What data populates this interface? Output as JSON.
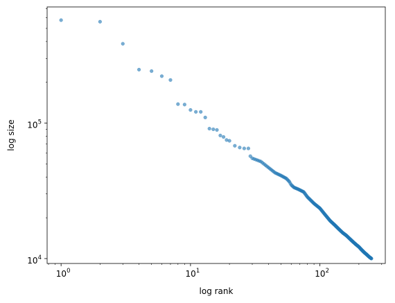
{
  "chart_data": {
    "type": "scatter",
    "title": "",
    "xlabel": "log rank",
    "ylabel": "log size",
    "xscale": "log",
    "yscale": "log",
    "xlim": [
      0.78,
      320
    ],
    "ylim": [
      9200,
      720000
    ],
    "grid": false,
    "legend": "none",
    "marker_color": "#1f77b4",
    "marker_alpha": 0.6,
    "xticks": [
      {
        "value": 1,
        "base": "10",
        "exp": "0"
      },
      {
        "value": 10,
        "base": "10",
        "exp": "1"
      },
      {
        "value": 100,
        "base": "10",
        "exp": "2"
      }
    ],
    "yticks": [
      {
        "value": 10000,
        "base": "10",
        "exp": "4"
      },
      {
        "value": 100000,
        "base": "10",
        "exp": "5"
      }
    ],
    "series": [
      {
        "x": [
          1,
          2,
          3,
          4,
          5,
          6,
          7,
          8,
          9,
          10,
          11,
          12,
          13,
          14,
          15,
          16,
          17,
          18,
          19,
          20,
          22,
          24,
          26,
          28
        ],
        "y": [
          575000,
          560000,
          385000,
          248000,
          242000,
          222000,
          208000,
          138000,
          137000,
          125000,
          121000,
          121000,
          110000,
          91000,
          90000,
          89000,
          81000,
          79000,
          75000,
          74000,
          68000,
          66000,
          65000,
          65000
        ]
      }
    ],
    "trend": {
      "x_range": [
        29,
        250
      ],
      "points": [
        [
          29,
          57000
        ],
        [
          30,
          55000
        ],
        [
          35,
          52000
        ],
        [
          40,
          47000
        ],
        [
          45,
          43000
        ],
        [
          50,
          41000
        ],
        [
          55,
          39000
        ],
        [
          58,
          37000
        ],
        [
          60,
          35000
        ],
        [
          63,
          33500
        ],
        [
          68,
          32500
        ],
        [
          75,
          31000
        ],
        [
          80,
          28500
        ],
        [
          90,
          25500
        ],
        [
          100,
          23500
        ],
        [
          110,
          21000
        ],
        [
          120,
          19000
        ],
        [
          130,
          17700
        ],
        [
          140,
          16500
        ],
        [
          150,
          15500
        ],
        [
          160,
          14800
        ],
        [
          170,
          14000
        ],
        [
          180,
          13300
        ],
        [
          190,
          12700
        ],
        [
          200,
          12200
        ],
        [
          210,
          11600
        ],
        [
          220,
          11100
        ],
        [
          230,
          10700
        ],
        [
          240,
          10300
        ],
        [
          250,
          10000
        ]
      ]
    }
  }
}
